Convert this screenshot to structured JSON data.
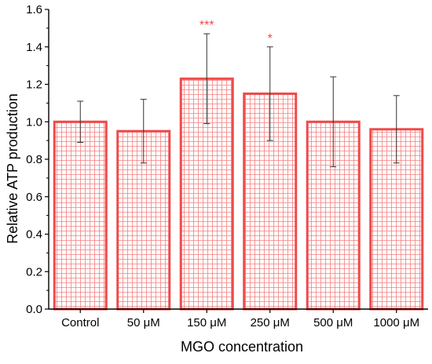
{
  "chart_data": {
    "type": "bar",
    "title": "",
    "xlabel": "MGO concentration",
    "ylabel": "Relative ATP production",
    "categories": [
      "Control",
      "50 μM",
      "150 μM",
      "250 μM",
      "500 μM",
      "1000 μM"
    ],
    "values": [
      1.0,
      0.95,
      1.23,
      1.15,
      1.0,
      0.96
    ],
    "error_high": [
      1.11,
      1.12,
      1.47,
      1.4,
      1.24,
      1.14
    ],
    "error_low": [
      0.89,
      0.78,
      0.99,
      0.9,
      0.76,
      0.78
    ],
    "annotations": [
      "",
      "",
      "***",
      "*",
      "",
      ""
    ],
    "ylim": [
      0,
      1.6
    ],
    "yticks": [
      0.0,
      0.2,
      0.4,
      0.6,
      0.8,
      1.0,
      1.2,
      1.4,
      1.6
    ],
    "ytick_labels": [
      "0.0",
      "0.2",
      "0.4",
      "0.6",
      "0.8",
      "1.0",
      "1.2",
      "1.4",
      "1.6"
    ],
    "grid": false,
    "bar_fill": "grid-hatch",
    "colors": {
      "bar": "#f04a4a",
      "hatch": "#f48080",
      "annotation": "#f04a4a",
      "axis": "#000000",
      "error_bar": "#333333"
    }
  }
}
